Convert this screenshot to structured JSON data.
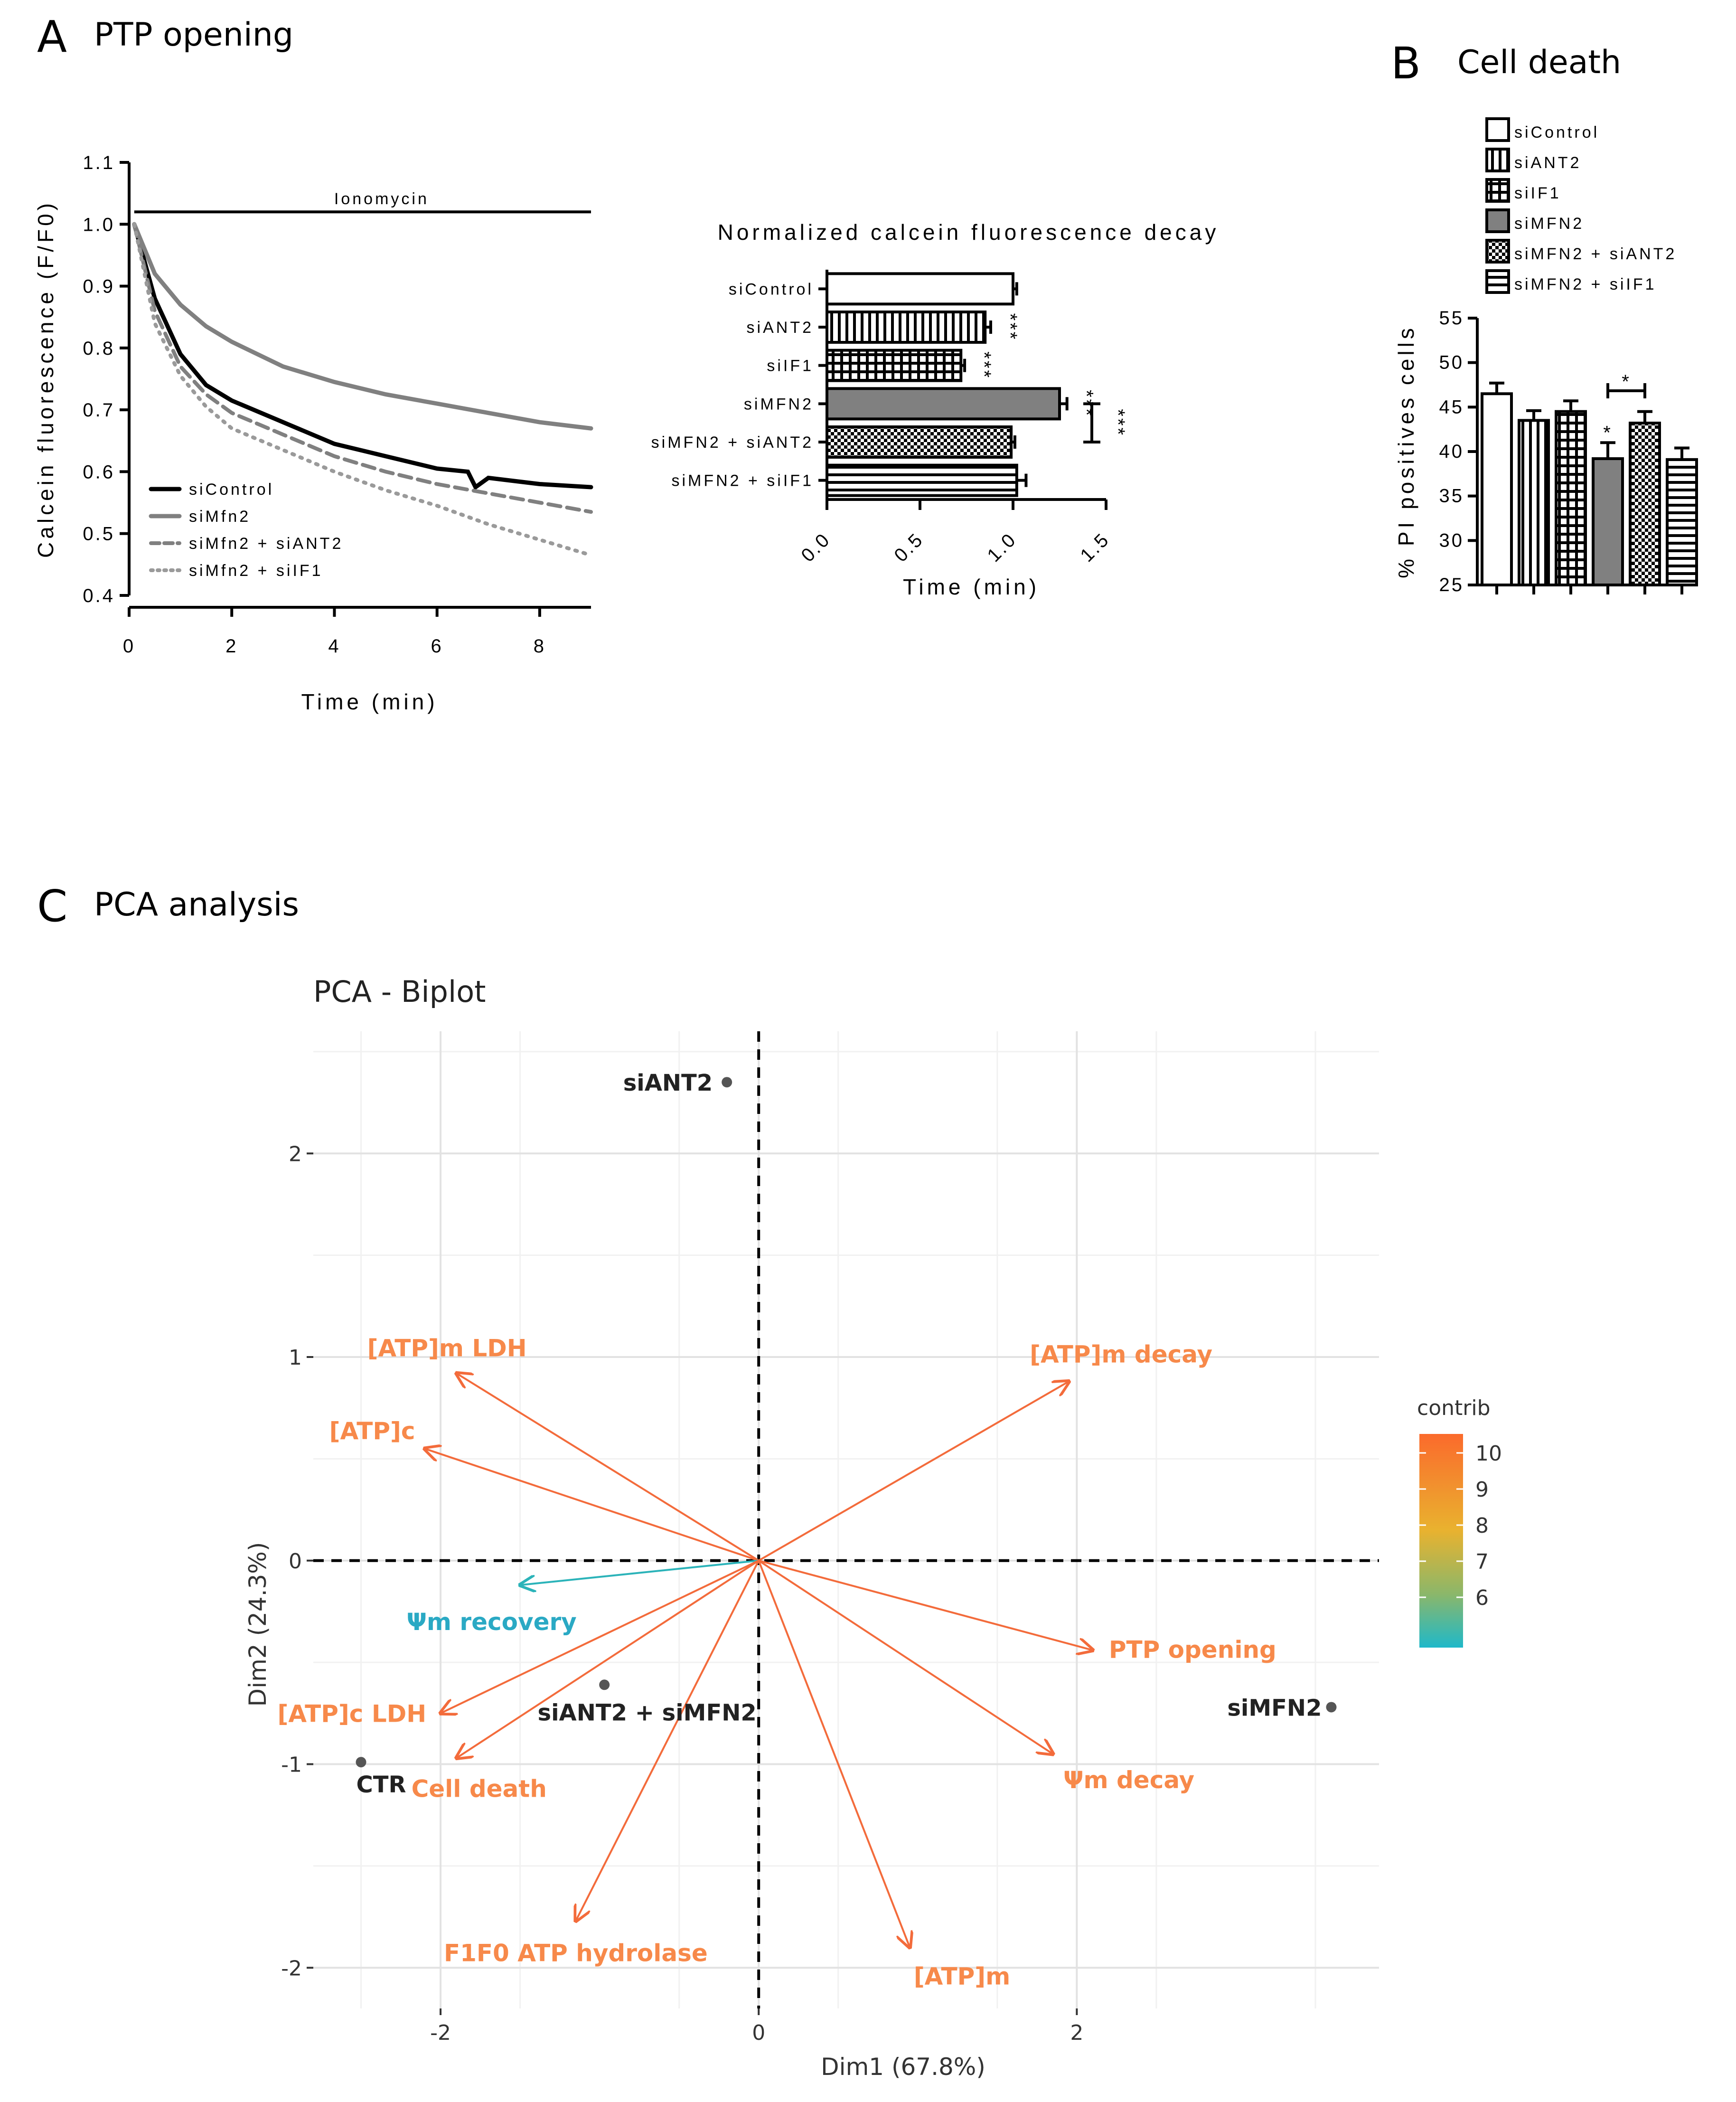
{
  "panels": {
    "a": {
      "letter": "A",
      "title": "PTP opening"
    },
    "b": {
      "letter": "B",
      "title": "Cell death"
    },
    "c": {
      "letter": "C",
      "title": "PCA analysis"
    }
  },
  "chart_data": [
    {
      "id": "A-left",
      "type": "line",
      "xlabel": "Time (min)",
      "ylabel": "Calcein fluorescence (F/F0)",
      "xlim": [
        0,
        9
      ],
      "ylim": [
        0.4,
        1.1
      ],
      "x_ticks": [
        "0",
        "2",
        "4",
        "6",
        "8"
      ],
      "y_ticks": [
        "0.4",
        "0.5",
        "0.6",
        "0.7",
        "0.8",
        "0.9",
        "1.0",
        "1.1"
      ],
      "annotation": {
        "label": "Ionomycin",
        "x_start": 0.1,
        "x_end": 9,
        "y": 1.02
      },
      "legend": "bottom-left",
      "series": [
        {
          "name": "siControl",
          "color": "#000000",
          "dash": "solid",
          "x": [
            0.1,
            0.5,
            1,
            1.5,
            2,
            3,
            4,
            5,
            6,
            6.6,
            6.75,
            7,
            8,
            9
          ],
          "y": [
            1.0,
            0.88,
            0.79,
            0.74,
            0.715,
            0.68,
            0.645,
            0.625,
            0.605,
            0.6,
            0.575,
            0.59,
            0.58,
            0.575
          ]
        },
        {
          "name": "siMfn2",
          "color": "#808080",
          "dash": "solid",
          "x": [
            0.1,
            0.5,
            1,
            1.5,
            2,
            3,
            4,
            5,
            6,
            7,
            8,
            9
          ],
          "y": [
            1.0,
            0.92,
            0.87,
            0.835,
            0.81,
            0.77,
            0.745,
            0.725,
            0.71,
            0.695,
            0.68,
            0.67
          ]
        },
        {
          "name": "siMfn2 + siANT2",
          "color": "#808080",
          "dash": "dashed",
          "x": [
            0.1,
            0.5,
            1,
            1.5,
            2,
            3,
            4,
            5,
            6,
            7,
            8,
            9
          ],
          "y": [
            1.0,
            0.86,
            0.77,
            0.725,
            0.695,
            0.66,
            0.625,
            0.6,
            0.58,
            0.565,
            0.55,
            0.535
          ]
        },
        {
          "name": "siMfn2 + siIF1",
          "color": "#9a9a9a",
          "dash": "dotted",
          "x": [
            0.1,
            0.5,
            1,
            1.5,
            2,
            3,
            4,
            5,
            6,
            7,
            8,
            9
          ],
          "y": [
            1.0,
            0.84,
            0.755,
            0.705,
            0.67,
            0.635,
            0.6,
            0.57,
            0.545,
            0.515,
            0.49,
            0.465
          ]
        }
      ]
    },
    {
      "id": "A-right",
      "type": "bar",
      "orientation": "horizontal",
      "title": "Normalized calcein fluorescence decay",
      "xlabel": "Time (min)",
      "xlim": [
        0,
        1.5
      ],
      "x_ticks": [
        "0.0",
        "0.5",
        "1.0",
        "1.5"
      ],
      "categories": [
        "siControl",
        "siANT2",
        "siIF1",
        "siMFN2",
        "siMFN2 + siANT2",
        "siMFN2 + siIF1"
      ],
      "values": [
        1.0,
        0.85,
        0.72,
        1.25,
        0.99,
        1.02
      ],
      "errors": [
        0.02,
        0.03,
        0.02,
        0.04,
        0.02,
        0.05
      ],
      "fills": [
        "white",
        "vertical-lines",
        "grid",
        "#808080",
        "checker",
        "horizontal-lines"
      ],
      "significance": [
        "",
        "***",
        "***",
        "***",
        "",
        ""
      ],
      "bracket": {
        "from": "siMFN2",
        "to": "siMFN2 + siANT2",
        "label": "***"
      }
    },
    {
      "id": "B",
      "type": "bar",
      "ylabel": "% PI positives cells",
      "ylim": [
        25,
        55
      ],
      "y_ticks": [
        "25",
        "30",
        "35",
        "40",
        "45",
        "50",
        "55"
      ],
      "categories": [
        "siControl",
        "siANT2",
        "siIF1",
        "siMFN2",
        "siMFN2 + siANT2",
        "siMFN2 + siIF1"
      ],
      "values": [
        46.5,
        43.5,
        44.5,
        39.2,
        43.2,
        39.1
      ],
      "errors": [
        1.2,
        1.1,
        1.2,
        1.8,
        1.3,
        1.3
      ],
      "fills": [
        "white",
        "vertical-lines",
        "grid",
        "#808080",
        "checker",
        "horizontal-lines"
      ],
      "significance": [
        "",
        "",
        "",
        "*",
        "",
        ""
      ],
      "bracket": {
        "from": "siMFN2",
        "to": "siMFN2 + siANT2",
        "label": "*"
      },
      "legend": "top"
    },
    {
      "id": "C",
      "type": "scatter",
      "subtype": "biplot",
      "title": "PCA - Biplot",
      "xlabel": "Dim1 (67.8%)",
      "ylabel": "Dim2 (24.3%)",
      "xlim": [
        -2.8,
        3.9
      ],
      "ylim": [
        -2.2,
        2.6
      ],
      "x_ticks": [
        "-2",
        "0",
        "2"
      ],
      "y_ticks": [
        "-2",
        "-1",
        "0",
        "1",
        "2"
      ],
      "grid": true,
      "individuals": [
        {
          "label": "siANT2",
          "x": -0.2,
          "y": 2.35
        },
        {
          "label": "siANT2 + siMFN2",
          "x": -0.97,
          "y": -0.61
        },
        {
          "label": "siMFN2",
          "x": 3.6,
          "y": -0.72
        },
        {
          "label": "CTR",
          "x": -2.5,
          "y": -0.99
        }
      ],
      "variables": [
        {
          "label": "[ATP]m LDH",
          "x": -1.9,
          "y": 0.92,
          "contrib": 10.2
        },
        {
          "label": "[ATP]c",
          "x": -2.1,
          "y": 0.55,
          "contrib": 10.0
        },
        {
          "label": "Ψm recovery",
          "x": -1.5,
          "y": -0.12,
          "contrib": 5.8
        },
        {
          "label": "[ATP]c LDH",
          "x": -2.0,
          "y": -0.75,
          "contrib": 10.1
        },
        {
          "label": "Cell death",
          "x": -1.9,
          "y": -0.97,
          "contrib": 10.0
        },
        {
          "label": "F1F0 ATP hydrolase",
          "x": -1.15,
          "y": -1.77,
          "contrib": 10.1
        },
        {
          "label": "[ATP]m",
          "x": 0.95,
          "y": -1.9,
          "contrib": 10.3
        },
        {
          "label": "Ψm decay",
          "x": 1.85,
          "y": -0.95,
          "contrib": 10.2
        },
        {
          "label": "PTP opening",
          "x": 2.1,
          "y": -0.44,
          "contrib": 10.4
        },
        {
          "label": "[ATP]m decay",
          "x": 1.95,
          "y": 0.88,
          "contrib": 10.4
        }
      ],
      "colorbar": {
        "title": "contrib",
        "ticks": [
          "10",
          "9",
          "8",
          "7",
          "6"
        ],
        "low_color": "#1fb8c9",
        "mid_color": "#e3b634",
        "high_color": "#fb6a2c"
      }
    }
  ]
}
